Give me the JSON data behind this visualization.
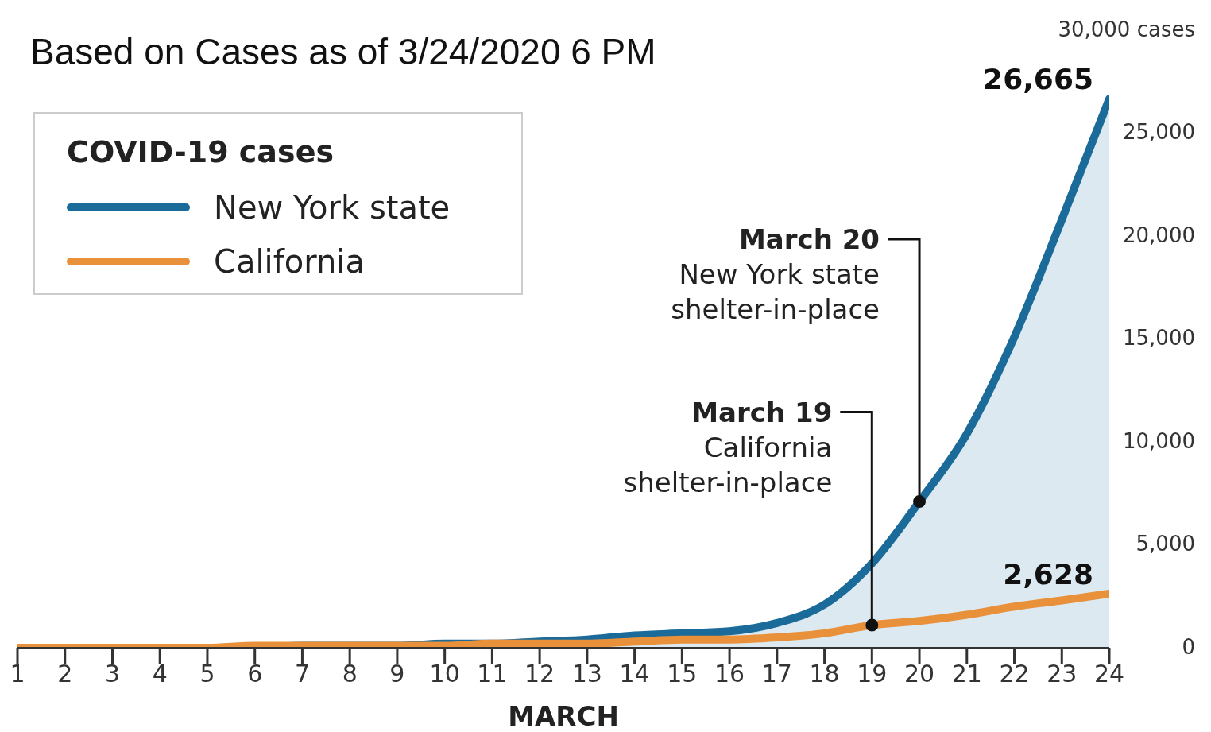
{
  "chart_data": {
    "type": "line",
    "title": "Based on Cases as of 3/24/2020 6 PM",
    "xlabel": "MARCH",
    "legend_title": "COVID-19 cases",
    "legend": "top left",
    "marker": "none",
    "x": [
      1,
      2,
      3,
      4,
      5,
      6,
      7,
      8,
      9,
      10,
      11,
      12,
      13,
      14,
      15,
      16,
      17,
      18,
      19,
      20,
      21,
      22,
      23,
      24
    ],
    "series": [
      {
        "name": "New York state",
        "type": "area",
        "color": "#1a6a9a",
        "values": [
          0,
          0,
          0,
          0,
          0,
          0,
          100,
          100,
          100,
          200,
          200,
          300,
          400,
          600,
          700,
          800,
          1200,
          2100,
          4100,
          7100,
          10400,
          15100,
          20800,
          26665
        ],
        "value_labels": [
          null,
          null,
          null,
          null,
          null,
          null,
          null,
          null,
          null,
          null,
          null,
          null,
          null,
          null,
          null,
          null,
          null,
          null,
          null,
          null,
          null,
          null,
          null,
          "26,665"
        ]
      },
      {
        "name": "California",
        "color": "#e8903a",
        "values": [
          0,
          0,
          0,
          0,
          0,
          100,
          100,
          100,
          100,
          100,
          200,
          200,
          200,
          300,
          400,
          400,
          500,
          700,
          1100,
          1300,
          1600,
          2000,
          2300,
          2628
        ],
        "value_labels": [
          null,
          null,
          null,
          null,
          null,
          null,
          null,
          null,
          null,
          null,
          null,
          null,
          null,
          null,
          null,
          null,
          null,
          null,
          null,
          null,
          null,
          null,
          null,
          "2,628"
        ]
      }
    ],
    "xlim": [
      1,
      24
    ],
    "xticks": [
      1,
      2,
      3,
      4,
      5,
      6,
      7,
      8,
      9,
      10,
      11,
      12,
      13,
      14,
      15,
      16,
      17,
      18,
      19,
      20,
      21,
      22,
      23,
      24
    ],
    "ylim": [
      0,
      30000
    ],
    "yticks": [
      {
        "value": 0,
        "label": "0"
      },
      {
        "value": 5000,
        "label": "5,000"
      },
      {
        "value": 10000,
        "label": "10,000"
      },
      {
        "value": 15000,
        "label": "15,000"
      },
      {
        "value": 20000,
        "label": "20,000"
      },
      {
        "value": 25000,
        "label": "25,000"
      },
      {
        "value": 30000,
        "label": "30,000 cases"
      }
    ],
    "annotations": [
      {
        "text": "March 20\nNew York state\nshelter-in-place",
        "x": 20,
        "y": 7100
      },
      {
        "text": "March 19\nCalifornia\nshelter-in-place",
        "x": 19,
        "y": 1100
      }
    ]
  }
}
